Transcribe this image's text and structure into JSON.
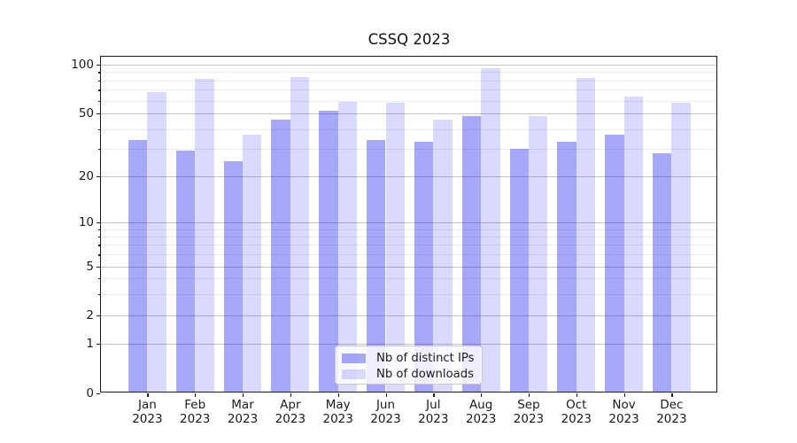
{
  "title": "CSSQ 2023",
  "chart_data": {
    "type": "bar",
    "title": "CSSQ 2023",
    "categories": [
      "Jan 2023",
      "Feb 2023",
      "Mar 2023",
      "Apr 2023",
      "May 2023",
      "Jun 2023",
      "Jul 2023",
      "Aug 2023",
      "Sep 2023",
      "Oct 2023",
      "Nov 2023",
      "Dec 2023"
    ],
    "x_tick_months": [
      "Jan",
      "Feb",
      "Mar",
      "Apr",
      "May",
      "Jun",
      "Jul",
      "Aug",
      "Sep",
      "Oct",
      "Nov",
      "Dec"
    ],
    "x_tick_year": "2023",
    "series": [
      {
        "name": "Nb of distinct IPs",
        "color": "rgba(0,0,238,0.34)",
        "values": [
          34,
          29,
          25,
          46,
          52,
          34,
          33,
          48,
          30,
          33,
          37,
          28
        ]
      },
      {
        "name": "Nb of downloads",
        "color": "rgba(0,0,238,0.145)",
        "values": [
          68,
          82,
          37,
          84,
          59,
          58,
          46,
          95,
          48,
          83,
          64,
          58
        ]
      }
    ],
    "y_axis": {
      "scale": "log-with-zero-baseline",
      "ticks": [
        0,
        1,
        2,
        5,
        10,
        20,
        50,
        100
      ],
      "minor_ticks": [
        3,
        4,
        6,
        7,
        8,
        9,
        30,
        40,
        60,
        70,
        80,
        90
      ],
      "ylim": [
        0,
        112
      ]
    },
    "grid": true,
    "legend_position": "lower-center"
  },
  "legend": {
    "items": [
      {
        "label": "Nb of distinct IPs"
      },
      {
        "label": "Nb of downloads"
      }
    ]
  },
  "colors": {
    "grid_major": "#c6c6c6",
    "grid_minor": "#ececec",
    "axis": "#1b1b1b",
    "text": "#1a1a1a",
    "legend_border": "#c9c9c9",
    "legend_bg": "rgba(255,255,255,0.8)"
  }
}
